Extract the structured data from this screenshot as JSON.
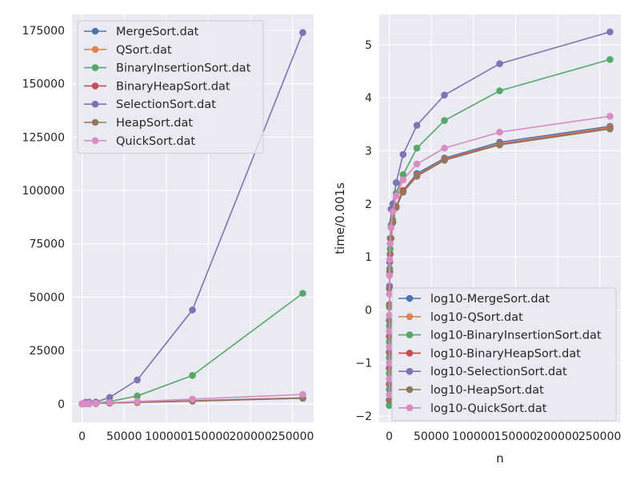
{
  "colors": {
    "MergeSort": "#4c72b0",
    "QSort": "#dd8452",
    "BinaryInsertionSort": "#55a868",
    "BinaryHeapSort": "#c44e52",
    "SelectionSort": "#8172b3",
    "HeapSort": "#937860",
    "QuickSort": "#da8bc3",
    "plot_background": "#eaeaf2",
    "grid": "#ffffff"
  },
  "chart_data": [
    {
      "type": "line",
      "xlabel": "",
      "ylabel": "",
      "grid": true,
      "legend_position": "upper-left",
      "xlim": [
        -12000,
        275000
      ],
      "ylim": [
        -8700,
        182500
      ],
      "xticks": [
        0,
        50000,
        100000,
        150000,
        200000,
        250000
      ],
      "xtick_labels": [
        "0",
        "50000",
        "100000",
        "150000",
        "200000",
        "250000"
      ],
      "yticks": [
        0,
        25000,
        50000,
        75000,
        100000,
        125000,
        150000,
        175000
      ],
      "ytick_labels": [
        "0",
        "25000",
        "50000",
        "75000",
        "100000",
        "125000",
        "150000",
        "175000"
      ],
      "x": [
        2,
        4,
        8,
        16,
        32,
        64,
        128,
        256,
        512,
        1024,
        2048,
        4096,
        8192,
        16384,
        32768,
        65536,
        131072,
        262144
      ],
      "series": [
        {
          "name": "MergeSort.dat",
          "color_key": "MergeSort",
          "values": [
            0.02,
            0.03,
            0.05,
            0.08,
            0.16,
            0.35,
            0.7,
            1.5,
            3.3,
            7,
            15,
            33,
            70,
            150,
            360,
            720,
            1450,
            2800
          ]
        },
        {
          "name": "QSort.dat",
          "color_key": "QSort",
          "values": [
            0.02,
            0.03,
            0.05,
            0.08,
            0.16,
            0.35,
            0.7,
            1.5,
            3.3,
            7,
            15,
            33,
            70,
            150,
            340,
            700,
            1350,
            2700
          ]
        },
        {
          "name": "BinaryInsertionSort.dat",
          "color_key": "BinaryInsertionSort",
          "values": [
            0.02,
            0.03,
            0.05,
            0.1,
            0.2,
            0.4,
            1,
            2.5,
            6,
            15,
            40,
            80,
            200,
            350,
            1100,
            3700,
            13300,
            51800
          ]
        },
        {
          "name": "BinaryHeapSort.dat",
          "color_key": "BinaryHeapSort",
          "values": [
            0.02,
            0.03,
            0.05,
            0.08,
            0.16,
            0.35,
            0.7,
            1.5,
            3.3,
            7,
            15,
            33,
            70,
            150,
            330,
            680,
            1300,
            2650
          ]
        },
        {
          "name": "SelectionSort.dat",
          "color_key": "SelectionSort",
          "values": [
            0.02,
            0.03,
            0.06,
            0.12,
            0.3,
            0.8,
            2.5,
            8,
            25,
            80,
            250,
            700,
            800,
            850,
            3000,
            11200,
            44000,
            174000
          ]
        },
        {
          "name": "HeapSort.dat",
          "color_key": "HeapSort",
          "values": [
            0.02,
            0.03,
            0.05,
            0.08,
            0.16,
            0.35,
            0.7,
            1.5,
            3.3,
            7,
            15,
            33,
            70,
            150,
            320,
            660,
            1280,
            2600
          ]
        },
        {
          "name": "QuickSort.dat",
          "color_key": "QuickSort",
          "values": [
            0.02,
            0.03,
            0.05,
            0.08,
            0.2,
            0.45,
            1,
            2.2,
            5,
            11,
            25,
            55,
            120,
            280,
            560,
            1120,
            2200,
            4400
          ]
        }
      ]
    },
    {
      "type": "line",
      "xlabel": "n",
      "ylabel": "time/0.001s",
      "grid": true,
      "legend_position": "lower-right",
      "xlim": [
        -12000,
        275000
      ],
      "ylim": [
        -2.12,
        5.57
      ],
      "xticks": [
        0,
        50000,
        100000,
        150000,
        200000,
        250000
      ],
      "xtick_labels": [
        "0",
        "50000",
        "100000",
        "150000",
        "200000",
        "250000"
      ],
      "yticks": [
        -2,
        -1,
        0,
        1,
        2,
        3,
        4,
        5
      ],
      "ytick_labels": [
        "−2",
        "−1",
        "0",
        "1",
        "2",
        "3",
        "4",
        "5"
      ],
      "x": [
        2,
        4,
        8,
        16,
        32,
        64,
        128,
        256,
        512,
        1024,
        2048,
        4096,
        8192,
        16384,
        32768,
        65536,
        131072,
        262144
      ],
      "series": [
        {
          "name": "log10-MergeSort.dat",
          "color_key": "MergeSort",
          "values": [
            -1.7,
            -1.4,
            -1.1,
            -0.8,
            -0.5,
            -0.2,
            0.1,
            0.4,
            0.72,
            1.05,
            1.35,
            1.65,
            1.95,
            2.25,
            2.57,
            2.86,
            3.16,
            3.46
          ]
        },
        {
          "name": "log10-QSort.dat",
          "color_key": "QSort",
          "values": [
            -1.7,
            -1.4,
            -1.1,
            -0.8,
            -0.5,
            -0.2,
            0.1,
            0.4,
            0.72,
            1.05,
            1.35,
            1.65,
            1.95,
            2.25,
            2.54,
            2.84,
            3.13,
            3.44
          ]
        },
        {
          "name": "log10-BinaryInsertionSort.dat",
          "color_key": "BinaryInsertionSort",
          "values": [
            -1.8,
            -1.5,
            -1.2,
            -0.9,
            -0.6,
            -0.3,
            0.05,
            0.4,
            0.78,
            1.15,
            1.6,
            1.7,
            2.2,
            2.55,
            3.05,
            3.57,
            4.13,
            4.72
          ]
        },
        {
          "name": "log10-BinaryHeapSort.dat",
          "color_key": "BinaryHeapSort",
          "values": [
            -1.7,
            -1.4,
            -1.1,
            -0.8,
            -0.5,
            -0.2,
            0.1,
            0.4,
            0.72,
            1.05,
            1.35,
            1.65,
            1.95,
            2.25,
            2.53,
            2.83,
            3.12,
            3.42
          ]
        },
        {
          "name": "log10-SelectionSort.dat",
          "color_key": "SelectionSort",
          "values": [
            -1.7,
            -1.4,
            -1.1,
            -0.8,
            -0.5,
            -0.2,
            0.1,
            0.45,
            0.9,
            1.35,
            1.9,
            2.0,
            2.4,
            2.93,
            3.48,
            4.05,
            4.64,
            5.24
          ]
        },
        {
          "name": "log10-HeapSort.dat",
          "color_key": "HeapSort",
          "values": [
            -1.7,
            -1.4,
            -1.1,
            -0.8,
            -0.5,
            -0.2,
            0.1,
            0.4,
            0.72,
            1.05,
            1.35,
            1.65,
            1.93,
            2.22,
            2.52,
            2.82,
            3.11,
            3.41
          ]
        },
        {
          "name": "log10-QuickSort.dat",
          "color_key": "QuickSort",
          "values": [
            -1.6,
            -1.3,
            -1.0,
            -0.7,
            -0.4,
            -0.1,
            0.3,
            0.65,
            0.95,
            1.25,
            1.55,
            1.85,
            2.15,
            2.45,
            2.75,
            3.05,
            3.35,
            3.65
          ]
        }
      ]
    }
  ]
}
